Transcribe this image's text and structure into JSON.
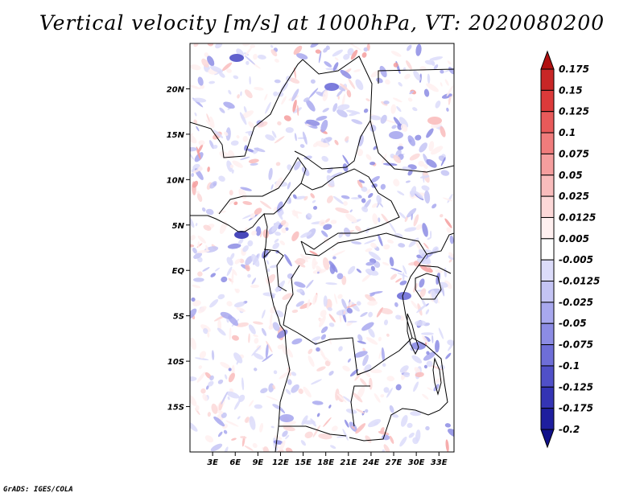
{
  "chart_data": {
    "type": "heatmap",
    "title": "Vertical velocity [m/s] at 1000hPa, VT: 2020080200",
    "variable": "Vertical velocity",
    "units": "m/s",
    "level": "1000hPa",
    "valid_time": "2020080200",
    "x_axis": {
      "ticks": [
        3,
        6,
        9,
        12,
        15,
        18,
        21,
        24,
        27,
        30,
        33
      ],
      "tick_labels": [
        "3E",
        "6E",
        "9E",
        "12E",
        "15E",
        "18E",
        "21E",
        "24E",
        "27E",
        "30E",
        "33E"
      ],
      "range": [
        0,
        35
      ]
    },
    "y_axis": {
      "ticks": [
        20,
        15,
        10,
        5,
        0,
        -5,
        -10,
        -15
      ],
      "tick_labels": [
        "20N",
        "15N",
        "10N",
        "5N",
        "EQ",
        "5S",
        "10S",
        "15S"
      ],
      "range": [
        -20,
        25
      ]
    },
    "colorbar": {
      "levels": [
        "0.175",
        "0.15",
        "0.125",
        "0.1",
        "0.075",
        "0.05",
        "0.025",
        "0.0125",
        "0.005",
        "-0.005",
        "-0.0125",
        "-0.025",
        "-0.05",
        "-0.075",
        "-0.1",
        "-0.125",
        "-0.175",
        "-0.2"
      ],
      "colors": [
        "#b01010",
        "#c82626",
        "#dc3a3a",
        "#e85a5a",
        "#f07c7c",
        "#f59e9e",
        "#f9bcbc",
        "#fcd8d8",
        "#fff0f0",
        "#ffffff",
        "#dcdcfa",
        "#c4c4f4",
        "#a8a8ee",
        "#8c8ce4",
        "#6e6ed8",
        "#5050c8",
        "#3434b4",
        "#1e1e9e",
        "#10108a"
      ]
    }
  },
  "footer": {
    "credit": "GrADS: IGES/COLA"
  }
}
